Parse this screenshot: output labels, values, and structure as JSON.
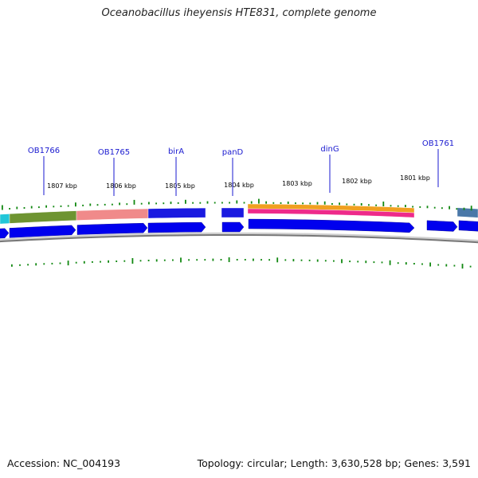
{
  "title": "Oceanobacillus iheyensis HTE831, complete genome",
  "footer": {
    "accession": "Accession: NC_004193",
    "summary": "Topology: circular; Length: 3,630,528 bp; Genes: 3,591"
  },
  "colors": {
    "cds": "#0000ee",
    "gene_label": "#1a1ad0",
    "gc_tick": "#118811",
    "backbone": "#777777"
  },
  "tick_labels": [
    "1807 kbp",
    "1806 kbp",
    "1805 kbp",
    "1804 kbp",
    "1803 kbp",
    "1802 kbp",
    "1801 kbp"
  ],
  "gene_labels": [
    "OB1766",
    "OB1765",
    "birA",
    "panD",
    "dinG",
    "OB1761"
  ],
  "features": [
    {
      "name": "cog-bar-cyan",
      "color": "#22c6d8"
    },
    {
      "name": "cog-bar-olive",
      "color": "#6e9431"
    },
    {
      "name": "cog-bar-salmon",
      "color": "#f08a8a"
    },
    {
      "name": "cog-bar-blue",
      "color": "#1a1ae0"
    },
    {
      "name": "cog-bar-blue",
      "color": "#1a1ae0"
    },
    {
      "name": "cog-bar-orange",
      "color": "#f0a020"
    },
    {
      "name": "cog-bar-magenta",
      "color": "#ee2a8a"
    },
    {
      "name": "cog-bar-steelblue",
      "color": "#4a78a8"
    }
  ]
}
